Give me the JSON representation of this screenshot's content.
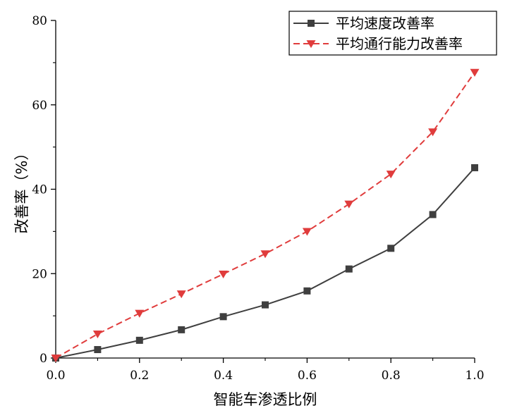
{
  "chart_data": {
    "type": "line",
    "xlabel": "智能车渗透比例",
    "ylabel": "改善率（%）",
    "xlim": [
      0,
      1.0
    ],
    "ylim": [
      0,
      80
    ],
    "x_ticks": [
      "0.0",
      "0.2",
      "0.4",
      "0.6",
      "0.8",
      "1.0"
    ],
    "y_ticks": [
      "0",
      "20",
      "40",
      "60",
      "80"
    ],
    "legend_position": "top-right",
    "grid": false,
    "x": [
      0.0,
      0.1,
      0.2,
      0.3,
      0.4,
      0.5,
      0.6,
      0.7,
      0.8,
      0.9,
      1.0
    ],
    "series": [
      {
        "name": "平均速度改善率",
        "color": "#3f3f3f",
        "marker": "square",
        "line_style": "solid",
        "values": [
          0,
          2.0,
          4.2,
          6.7,
          9.8,
          12.6,
          15.9,
          21.1,
          26.0,
          34.0,
          45.1
        ]
      },
      {
        "name": "平均通行能力改善率",
        "color": "#e03c3c",
        "marker": "triangle-down",
        "line_style": "dashed",
        "values": [
          0,
          5.7,
          10.6,
          15.2,
          19.9,
          24.7,
          30.0,
          36.5,
          43.6,
          53.6,
          67.7
        ]
      }
    ]
  }
}
